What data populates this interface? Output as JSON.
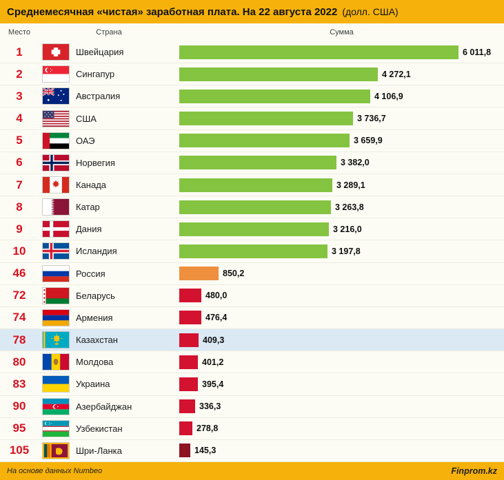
{
  "title": {
    "main": "Среднемесячная «чистая» заработная плата. На 22 августа 2022",
    "suffix": "(долл. США)"
  },
  "columns": {
    "rank": "Место",
    "country": "Страна",
    "amount": "Сумма"
  },
  "footer": {
    "source": "На основе данных Numbeo",
    "brand": "Finprom.kz"
  },
  "colors": {
    "header_bg": "#F6B20A",
    "rank_text": "#D8111F",
    "bar_green": "#84C441",
    "bar_orange": "#EE8F3E",
    "bar_red": "#D2122E",
    "bar_dark_red": "#8C1423",
    "highlight_row_bg": "#DBE9F4"
  },
  "chart_data": {
    "type": "bar",
    "orientation": "horizontal",
    "title": "Среднемесячная «чистая» заработная плата. На 22 августа 2022 (долл. США)",
    "unit": "долл. США",
    "source": "Numbeo",
    "xlim": [
      0,
      6011.8
    ],
    "ranks": [
      1,
      2,
      3,
      4,
      5,
      6,
      7,
      8,
      9,
      10,
      46,
      72,
      74,
      78,
      80,
      83,
      90,
      95,
      105
    ],
    "categories": [
      "Швейцария",
      "Сингапур",
      "Австралия",
      "США",
      "ОАЭ",
      "Норвегия",
      "Канада",
      "Катар",
      "Дания",
      "Исландия",
      "Россия",
      "Беларусь",
      "Армения",
      "Казахстан",
      "Молдова",
      "Украина",
      "Азербайджан",
      "Узбекистан",
      "Шри-Ланка"
    ],
    "values": [
      6011.8,
      4272.1,
      4106.9,
      3736.7,
      3659.9,
      3382.0,
      3289.1,
      3263.8,
      3216.0,
      3197.8,
      850.2,
      480.0,
      476.4,
      409.3,
      401.2,
      395.4,
      336.3,
      278.8,
      145.3
    ]
  },
  "rows": [
    {
      "rank": "1",
      "country": "Швейцария",
      "flag": "switzerland",
      "value": 6011.8,
      "value_label": "6 011,8",
      "bar_color": "#84C441",
      "highlight": false
    },
    {
      "rank": "2",
      "country": "Сингапур",
      "flag": "singapore",
      "value": 4272.1,
      "value_label": "4 272,1",
      "bar_color": "#84C441",
      "highlight": false
    },
    {
      "rank": "3",
      "country": "Австралия",
      "flag": "australia",
      "value": 4106.9,
      "value_label": "4 106,9",
      "bar_color": "#84C441",
      "highlight": false
    },
    {
      "rank": "4",
      "country": "США",
      "flag": "usa",
      "value": 3736.7,
      "value_label": "3 736,7",
      "bar_color": "#84C441",
      "highlight": false
    },
    {
      "rank": "5",
      "country": "ОАЭ",
      "flag": "uae",
      "value": 3659.9,
      "value_label": "3 659,9",
      "bar_color": "#84C441",
      "highlight": false
    },
    {
      "rank": "6",
      "country": "Норвегия",
      "flag": "norway",
      "value": 3382.0,
      "value_label": "3 382,0",
      "bar_color": "#84C441",
      "highlight": false
    },
    {
      "rank": "7",
      "country": "Канада",
      "flag": "canada",
      "value": 3289.1,
      "value_label": "3 289,1",
      "bar_color": "#84C441",
      "highlight": false
    },
    {
      "rank": "8",
      "country": "Катар",
      "flag": "qatar",
      "value": 3263.8,
      "value_label": "3 263,8",
      "bar_color": "#84C441",
      "highlight": false
    },
    {
      "rank": "9",
      "country": "Дания",
      "flag": "denmark",
      "value": 3216.0,
      "value_label": "3 216,0",
      "bar_color": "#84C441",
      "highlight": false
    },
    {
      "rank": "10",
      "country": "Исландия",
      "flag": "iceland",
      "value": 3197.8,
      "value_label": "3 197,8",
      "bar_color": "#84C441",
      "highlight": false
    },
    {
      "rank": "46",
      "country": "Россия",
      "flag": "russia",
      "value": 850.2,
      "value_label": "850,2",
      "bar_color": "#EE8F3E",
      "highlight": false
    },
    {
      "rank": "72",
      "country": "Беларусь",
      "flag": "belarus",
      "value": 480.0,
      "value_label": "480,0",
      "bar_color": "#D2122E",
      "highlight": false
    },
    {
      "rank": "74",
      "country": "Армения",
      "flag": "armenia",
      "value": 476.4,
      "value_label": "476,4",
      "bar_color": "#D2122E",
      "highlight": false
    },
    {
      "rank": "78",
      "country": "Казахстан",
      "flag": "kazakhstan",
      "value": 409.3,
      "value_label": "409,3",
      "bar_color": "#D2122E",
      "highlight": true
    },
    {
      "rank": "80",
      "country": "Молдова",
      "flag": "moldova",
      "value": 401.2,
      "value_label": "401,2",
      "bar_color": "#D2122E",
      "highlight": false
    },
    {
      "rank": "83",
      "country": "Украина",
      "flag": "ukraine",
      "value": 395.4,
      "value_label": "395,4",
      "bar_color": "#D2122E",
      "highlight": false
    },
    {
      "rank": "90",
      "country": "Азербайджан",
      "flag": "azerbaijan",
      "value": 336.3,
      "value_label": "336,3",
      "bar_color": "#D2122E",
      "highlight": false
    },
    {
      "rank": "95",
      "country": "Узбекистан",
      "flag": "uzbekistan",
      "value": 278.8,
      "value_label": "278,8",
      "bar_color": "#D2122E",
      "highlight": false
    },
    {
      "rank": "105",
      "country": "Шри-Ланка",
      "flag": "sri-lanka",
      "value": 145.3,
      "value_label": "145,3",
      "bar_color": "#8C1423",
      "highlight": false
    }
  ]
}
